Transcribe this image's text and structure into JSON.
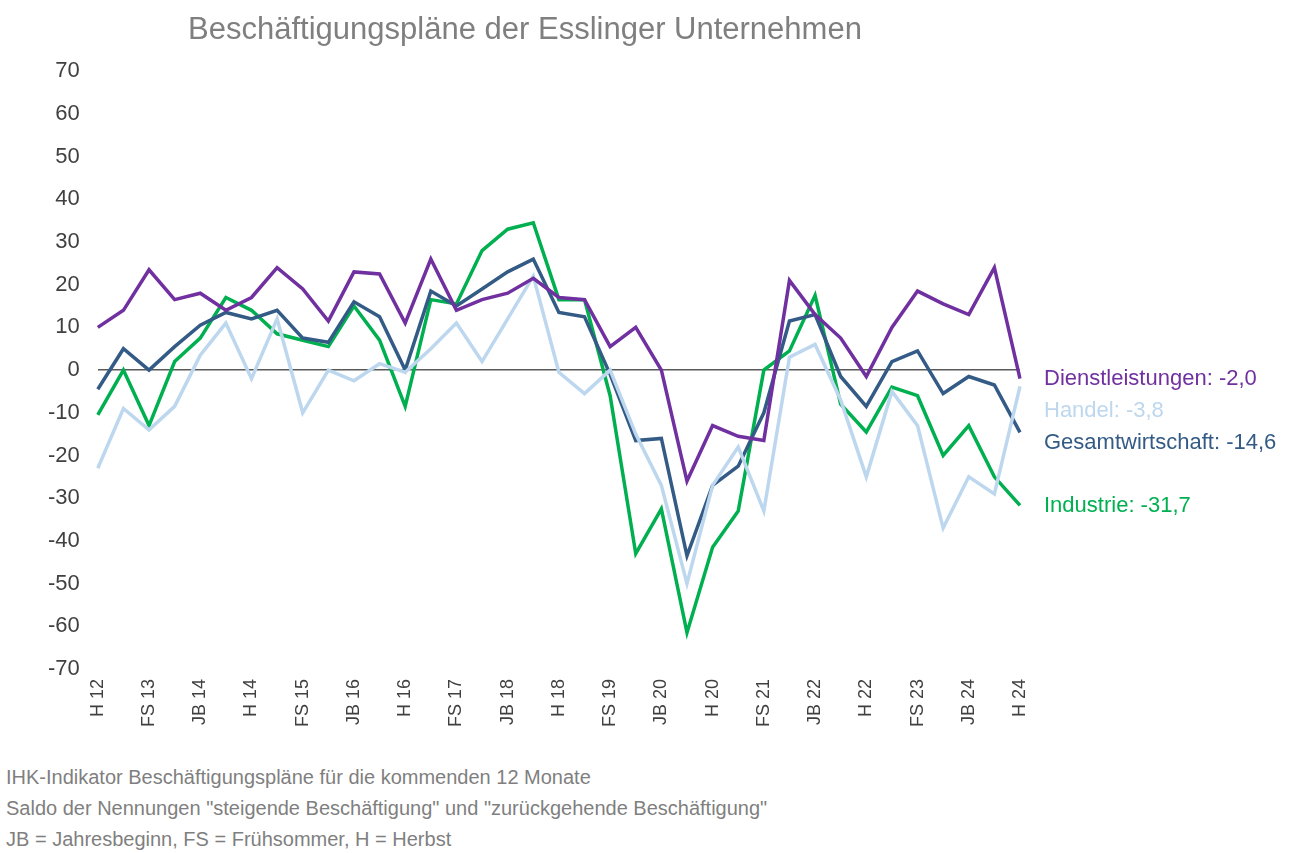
{
  "chart_data": {
    "type": "line",
    "title": "Beschäftigungspläne der Esslinger Unternehmen",
    "categories": [
      "H 12",
      null,
      "FS 13",
      null,
      "JB 14",
      null,
      "H 14",
      null,
      "FS 15",
      null,
      "JB 16",
      null,
      "H 16",
      null,
      "FS 17",
      null,
      "JB 18",
      null,
      "H 18",
      null,
      "FS 19",
      null,
      "JB 20",
      null,
      "H 20",
      null,
      "FS 21",
      null,
      "JB 22",
      null,
      "H 22",
      null,
      "FS 23",
      null,
      "JB 24",
      null,
      "H 24"
    ],
    "series": [
      {
        "name": "Dienstleistungen",
        "color": "#7030a0",
        "values": [
          10,
          14,
          23.5,
          16.5,
          18,
          14,
          17,
          24,
          19,
          11.5,
          23,
          22.5,
          11,
          26,
          14,
          16.5,
          18,
          21.5,
          17,
          16.5,
          5.5,
          10,
          0,
          -26,
          -13,
          -15.5,
          -16.5,
          21,
          13,
          7.5,
          -1.5,
          10,
          18.5,
          15.5,
          13,
          24,
          -2.0
        ]
      },
      {
        "name": "Handel",
        "color": "#bdd7ee",
        "values": [
          -23,
          -9,
          -14,
          -8.5,
          3.5,
          11,
          -2,
          12,
          -10,
          0,
          -2.5,
          1.5,
          -0.5,
          5,
          11,
          2,
          12,
          22,
          -0.5,
          -5.5,
          0,
          -15,
          -27,
          -50,
          -27,
          -18,
          -33,
          3,
          6,
          -7,
          -25,
          -5,
          -13,
          -37,
          -25,
          -29,
          -3.8
        ]
      },
      {
        "name": "Gesamtwirtschaft",
        "color": "#335b86",
        "values": [
          -4.5,
          5,
          0,
          5.5,
          10.5,
          13.5,
          12,
          14,
          7.5,
          6.5,
          16,
          12.5,
          0,
          18.5,
          15,
          19,
          23,
          26,
          13.5,
          12.5,
          -1,
          -16.5,
          -16,
          -43.5,
          -27,
          -22.5,
          -10,
          11.5,
          13,
          -1.5,
          -8.5,
          2,
          4.5,
          -5.5,
          -1.5,
          -3.5,
          -14.6
        ]
      },
      {
        "name": "Industrie",
        "color": "#00b050",
        "values": [
          -10.5,
          0,
          -13,
          2,
          7.5,
          17,
          14,
          8.5,
          7,
          5.5,
          15,
          7,
          -8.5,
          16.5,
          15.5,
          28,
          33,
          34.5,
          16.5,
          16.5,
          -6,
          -43,
          -32.5,
          -61.5,
          -41.5,
          -33,
          0,
          4.5,
          17.5,
          -8,
          -14.5,
          -4,
          -6,
          -20,
          -13,
          -25,
          -31.7
        ]
      }
    ],
    "annotations": [
      {
        "series": "Dienstleistungen",
        "text": "Dienstleistungen: -2,0"
      },
      {
        "series": "Handel",
        "text": "Handel: -3,8"
      },
      {
        "series": "Gesamtwirtschaft",
        "text": "Gesamtwirtschaft: -14,6"
      },
      {
        "series": "Industrie",
        "text": "Industrie: -31,7"
      }
    ],
    "footnotes": [
      "IHK-Indikator Beschäftigungspläne für die kommenden 12 Monate",
      "Saldo der Nennungen \"steigende Beschäftigung\" und \"zurückgehende Beschäftigung\"",
      "JB = Jahresbeginn, FS = Frühsommer, H = Herbst"
    ],
    "ylim": [
      -70,
      70
    ],
    "yticks": [
      -70,
      -60,
      -50,
      -40,
      -30,
      -20,
      -10,
      0,
      10,
      20,
      30,
      40,
      50,
      60,
      70
    ],
    "grid": false,
    "legend": "none"
  }
}
